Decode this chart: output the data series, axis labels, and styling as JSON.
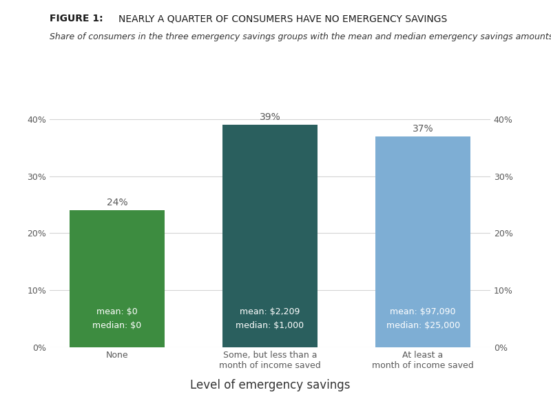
{
  "title_bold": "FIGURE 1:",
  "title_normal": "NEARLY A QUARTER OF CONSUMERS HAVE NO EMERGENCY SAVINGS",
  "subtitle": "Share of consumers in the three emergency savings groups with the mean and median emergency savings amounts",
  "categories": [
    "None",
    "Some, but less than a\nmonth of income saved",
    "At least a\nmonth of income saved"
  ],
  "values": [
    0.24,
    0.39,
    0.37
  ],
  "bar_colors": [
    "#3d8c40",
    "#2a5f5e",
    "#7eaed4"
  ],
  "bar_labels": [
    "24%",
    "39%",
    "37%"
  ],
  "bar_annotations": [
    "mean: $0\nmedian: $0",
    "mean: $2,209\nmedian: $1,000",
    "mean: $97,090\nmedian: $25,000"
  ],
  "xlabel": "Level of emergency savings",
  "ylim": [
    0,
    0.42
  ],
  "yticks": [
    0.0,
    0.1,
    0.2,
    0.3,
    0.4
  ],
  "ytick_labels": [
    "0%",
    "10%",
    "20%",
    "30%",
    "40%"
  ],
  "background_color": "#ffffff",
  "grid_color": "#d4d4d4",
  "text_color": "#595959",
  "annotation_text_color": "#ffffff",
  "title_fontsize": 10,
  "subtitle_fontsize": 9,
  "bar_label_fontsize": 10,
  "annotation_fontsize": 9,
  "tick_fontsize": 9,
  "xlabel_fontsize": 12
}
